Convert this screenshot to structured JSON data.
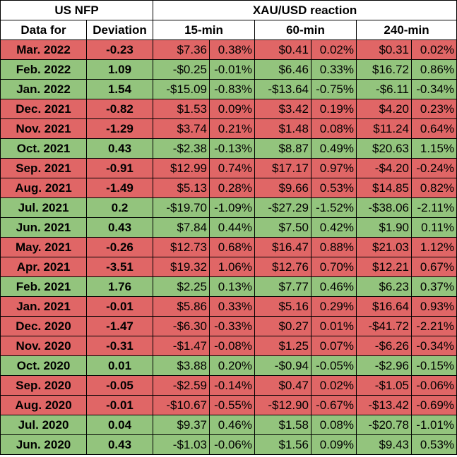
{
  "header": {
    "group1": "US NFP",
    "group2": "XAU/USD reaction",
    "col_date": "Data for",
    "col_dev": "Deviation",
    "col_15": "15-min",
    "col_60": "60-min",
    "col_240": "240-min"
  },
  "colors": {
    "negative_row": "#e06666",
    "positive_row": "#93c47d"
  },
  "rows": [
    {
      "date": "Mar. 2022",
      "dev": "-0.23",
      "m15": "$7.36",
      "p15": "0.38%",
      "m60": "$0.41",
      "p60": "0.02%",
      "m240": "$0.31",
      "p240": "0.02%",
      "tone": "neg"
    },
    {
      "date": "Feb. 2022",
      "dev": "1.09",
      "m15": "-$0.25",
      "p15": "-0.01%",
      "m60": "$6.46",
      "p60": "0.33%",
      "m240": "$16.72",
      "p240": "0.86%",
      "tone": "pos"
    },
    {
      "date": "Jan. 2022",
      "dev": "1.54",
      "m15": "-$15.09",
      "p15": "-0.83%",
      "m60": "-$13.64",
      "p60": "-0.75%",
      "m240": "-$6.11",
      "p240": "-0.34%",
      "tone": "pos"
    },
    {
      "date": "Dec. 2021",
      "dev": "-0.82",
      "m15": "$1.53",
      "p15": "0.09%",
      "m60": "$3.42",
      "p60": "0.19%",
      "m240": "$4.20",
      "p240": "0.23%",
      "tone": "neg"
    },
    {
      "date": "Nov. 2021",
      "dev": "-1.29",
      "m15": "$3.74",
      "p15": "0.21%",
      "m60": "$1.48",
      "p60": "0.08%",
      "m240": "$11.24",
      "p240": "0.64%",
      "tone": "neg"
    },
    {
      "date": "Oct. 2021",
      "dev": "0.43",
      "m15": "-$2.38",
      "p15": "-0.13%",
      "m60": "$8.87",
      "p60": "0.49%",
      "m240": "$20.63",
      "p240": "1.15%",
      "tone": "pos"
    },
    {
      "date": "Sep. 2021",
      "dev": "-0.91",
      "m15": "$12.99",
      "p15": "0.74%",
      "m60": "$17.17",
      "p60": "0.97%",
      "m240": "-$4.20",
      "p240": "-0.24%",
      "tone": "neg"
    },
    {
      "date": "Aug. 2021",
      "dev": "-1.49",
      "m15": "$5.13",
      "p15": "0.28%",
      "m60": "$9.66",
      "p60": "0.53%",
      "m240": "$14.85",
      "p240": "0.82%",
      "tone": "neg"
    },
    {
      "date": "Jul. 2021",
      "dev": "0.2",
      "m15": "-$19.70",
      "p15": "-1.09%",
      "m60": "-$27.29",
      "p60": "-1.52%",
      "m240": "-$38.06",
      "p240": "-2.11%",
      "tone": "pos"
    },
    {
      "date": "Jun. 2021",
      "dev": "0.43",
      "m15": "$7.84",
      "p15": "0.44%",
      "m60": "$7.50",
      "p60": "0.42%",
      "m240": "$1.90",
      "p240": "0.11%",
      "tone": "pos"
    },
    {
      "date": "May. 2021",
      "dev": "-0.26",
      "m15": "$12.73",
      "p15": "0.68%",
      "m60": "$16.47",
      "p60": "0.88%",
      "m240": "$21.03",
      "p240": "1.12%",
      "tone": "neg"
    },
    {
      "date": "Apr. 2021",
      "dev": "-3.51",
      "m15": "$19.32",
      "p15": "1.06%",
      "m60": "$12.76",
      "p60": "0.70%",
      "m240": "$12.21",
      "p240": "0.67%",
      "tone": "neg"
    },
    {
      "date": "Feb. 2021",
      "dev": "1.76",
      "m15": "$2.25",
      "p15": "0.13%",
      "m60": "$7.77",
      "p60": "0.46%",
      "m240": "$6.23",
      "p240": "0.37%",
      "tone": "pos"
    },
    {
      "date": "Jan. 2021",
      "dev": "-0.01",
      "m15": "$5.86",
      "p15": "0.33%",
      "m60": "$5.16",
      "p60": "0.29%",
      "m240": "$16.64",
      "p240": "0.93%",
      "tone": "neg"
    },
    {
      "date": "Dec. 2020",
      "dev": "-1.47",
      "m15": "-$6.30",
      "p15": "-0.33%",
      "m60": "$0.27",
      "p60": "0.01%",
      "m240": "-$41.72",
      "p240": "-2.21%",
      "tone": "neg"
    },
    {
      "date": "Nov. 2020",
      "dev": "-0.31",
      "m15": "-$1.47",
      "p15": "-0.08%",
      "m60": "$1.25",
      "p60": "0.07%",
      "m240": "-$6.26",
      "p240": "-0.34%",
      "tone": "neg"
    },
    {
      "date": "Oct. 2020",
      "dev": "0.01",
      "m15": "$3.88",
      "p15": "0.20%",
      "m60": "-$0.94",
      "p60": "-0.05%",
      "m240": "-$2.96",
      "p240": "-0.15%",
      "tone": "pos"
    },
    {
      "date": "Sep. 2020",
      "dev": "-0.05",
      "m15": "-$2.59",
      "p15": "-0.14%",
      "m60": "$0.47",
      "p60": "0.02%",
      "m240": "-$1.05",
      "p240": "-0.06%",
      "tone": "neg"
    },
    {
      "date": "Aug. 2020",
      "dev": "-0.01",
      "m15": "-$10.67",
      "p15": "-0.55%",
      "m60": "-$12.90",
      "p60": "-0.67%",
      "m240": "-$13.42",
      "p240": "-0.69%",
      "tone": "neg"
    },
    {
      "date": "Jul. 2020",
      "dev": "0.04",
      "m15": "$9.37",
      "p15": "0.46%",
      "m60": "$1.58",
      "p60": "0.08%",
      "m240": "-$20.78",
      "p240": "-1.01%",
      "tone": "pos"
    },
    {
      "date": "Jun. 2020",
      "dev": "0.43",
      "m15": "-$1.03",
      "p15": "-0.06%",
      "m60": "$1.56",
      "p60": "0.09%",
      "m240": "$9.43",
      "p240": "0.53%",
      "tone": "pos"
    }
  ]
}
